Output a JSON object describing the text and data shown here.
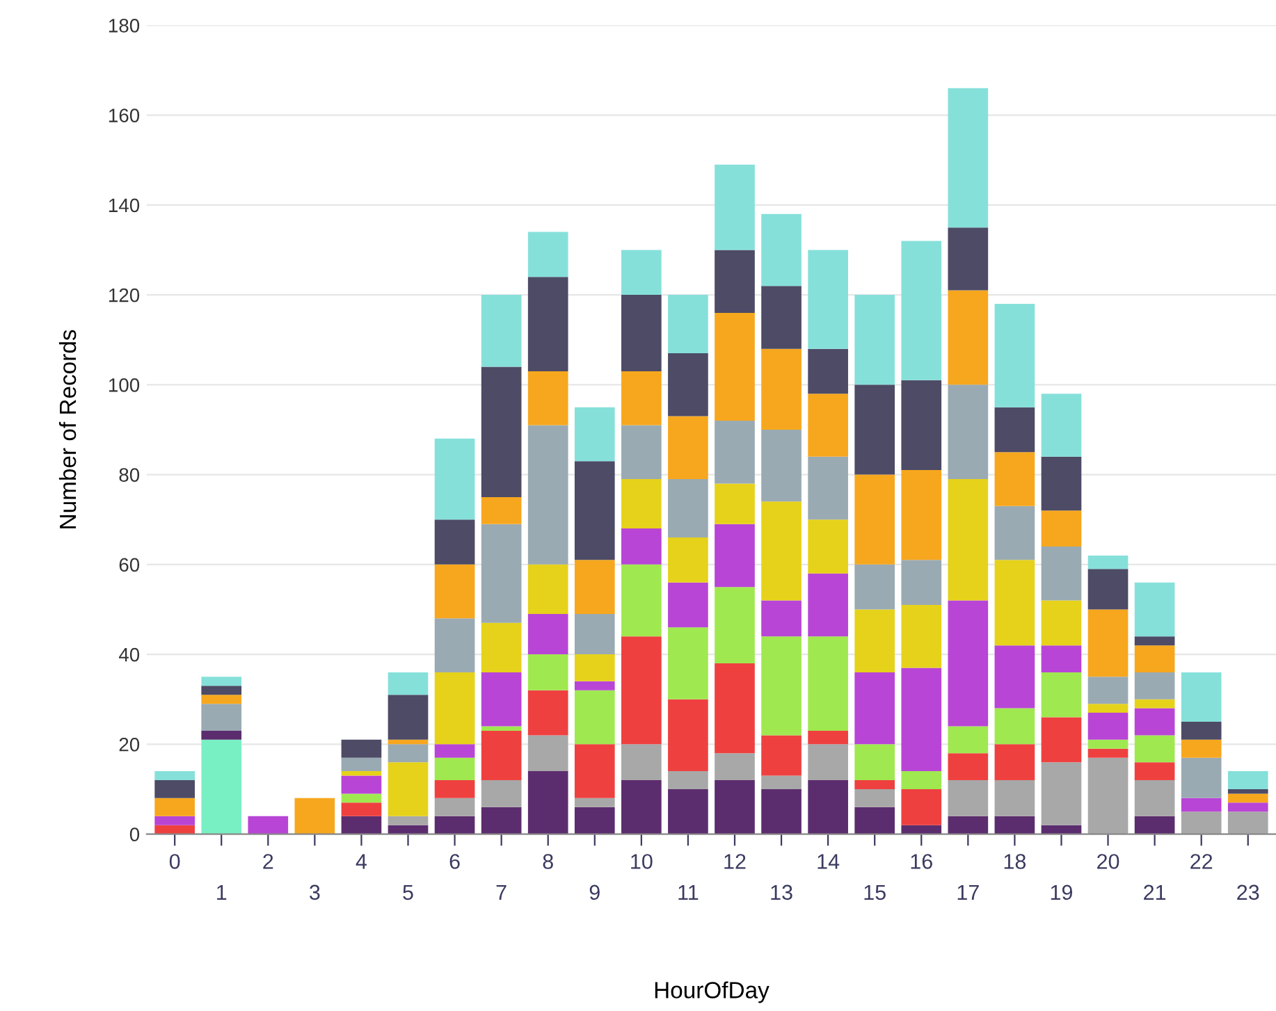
{
  "chart_data": {
    "type": "bar",
    "stacked": true,
    "xlabel": "HourOfDay",
    "ylabel": "Number of Records",
    "categories": [
      "0",
      "1",
      "2",
      "3",
      "4",
      "5",
      "6",
      "7",
      "8",
      "9",
      "10",
      "11",
      "12",
      "13",
      "14",
      "15",
      "16",
      "17",
      "18",
      "19",
      "20",
      "21",
      "22",
      "23"
    ],
    "series": [
      {
        "color": "#79f0c4",
        "values": [
          0,
          21,
          0,
          0,
          0,
          0,
          0,
          0,
          0,
          0,
          0,
          0,
          0,
          0,
          0,
          0,
          0,
          0,
          0,
          0,
          0,
          0,
          0,
          0
        ]
      },
      {
        "color": "#5c2d6e",
        "values": [
          0,
          2,
          0,
          0,
          4,
          2,
          4,
          6,
          14,
          6,
          12,
          10,
          12,
          10,
          12,
          6,
          2,
          4,
          4,
          2,
          0,
          4,
          0,
          0
        ]
      },
      {
        "color": "#a8a8a8",
        "values": [
          0,
          0,
          0,
          0,
          0,
          2,
          4,
          6,
          8,
          2,
          8,
          4,
          6,
          3,
          8,
          4,
          0,
          8,
          8,
          14,
          17,
          8,
          5,
          5
        ]
      },
      {
        "color": "#ef4040",
        "values": [
          2,
          0,
          0,
          0,
          3,
          0,
          4,
          11,
          10,
          12,
          24,
          16,
          20,
          9,
          3,
          2,
          8,
          6,
          8,
          10,
          2,
          4,
          0,
          0
        ]
      },
      {
        "color": "#a0e850",
        "values": [
          0,
          0,
          0,
          0,
          2,
          0,
          5,
          1,
          8,
          12,
          16,
          16,
          17,
          22,
          21,
          8,
          4,
          6,
          8,
          10,
          2,
          6,
          0,
          0
        ]
      },
      {
        "color": "#b845d6",
        "values": [
          2,
          0,
          4,
          0,
          4,
          0,
          3,
          12,
          9,
          2,
          8,
          10,
          14,
          8,
          14,
          16,
          23,
          28,
          14,
          6,
          6,
          6,
          3,
          2
        ]
      },
      {
        "color": "#e6d21a",
        "values": [
          0,
          0,
          0,
          0,
          1,
          12,
          16,
          11,
          11,
          6,
          11,
          10,
          9,
          22,
          12,
          14,
          14,
          27,
          19,
          10,
          2,
          2,
          0,
          0
        ]
      },
      {
        "color": "#9aaab3",
        "values": [
          0,
          6,
          0,
          0,
          3,
          4,
          12,
          22,
          31,
          9,
          12,
          13,
          14,
          16,
          14,
          10,
          10,
          21,
          12,
          12,
          6,
          6,
          9,
          0
        ]
      },
      {
        "color": "#f7a71e",
        "values": [
          4,
          2,
          0,
          8,
          0,
          1,
          12,
          6,
          12,
          12,
          12,
          14,
          24,
          18,
          14,
          20,
          20,
          21,
          12,
          8,
          15,
          6,
          4,
          2
        ]
      },
      {
        "color": "#4d4b66",
        "values": [
          4,
          2,
          0,
          0,
          4,
          10,
          10,
          29,
          21,
          22,
          17,
          14,
          14,
          14,
          10,
          20,
          20,
          14,
          10,
          12,
          9,
          2,
          4,
          1
        ]
      },
      {
        "color": "#86e0da",
        "values": [
          2,
          2,
          0,
          0,
          0,
          5,
          18,
          16,
          10,
          12,
          10,
          13,
          19,
          16,
          22,
          20,
          31,
          31,
          23,
          14,
          3,
          12,
          11,
          4
        ]
      }
    ],
    "ylim": [
      0,
      180
    ],
    "yticks": [
      0,
      20,
      40,
      60,
      80,
      100,
      120,
      140,
      160,
      180
    ],
    "grid": "y"
  }
}
